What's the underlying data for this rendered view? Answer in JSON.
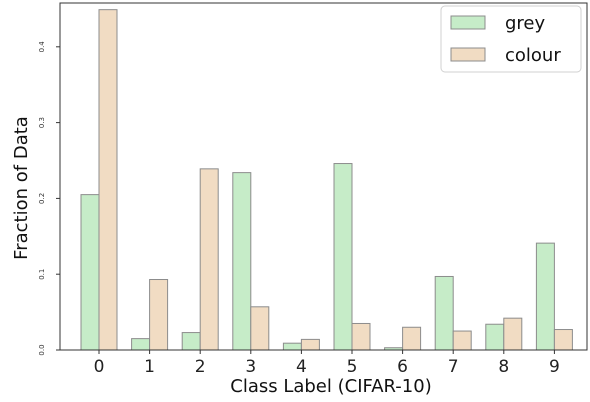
{
  "chart_data": {
    "type": "bar",
    "categories": [
      "0",
      "1",
      "2",
      "3",
      "4",
      "5",
      "6",
      "7",
      "8",
      "9"
    ],
    "series": [
      {
        "name": "grey",
        "color": "#c6ecc8",
        "values": [
          0.205,
          0.015,
          0.023,
          0.234,
          0.009,
          0.246,
          0.003,
          0.097,
          0.034,
          0.141
        ]
      },
      {
        "name": "colour",
        "color": "#f1dcc3",
        "values": [
          0.449,
          0.093,
          0.239,
          0.057,
          0.014,
          0.035,
          0.03,
          0.025,
          0.042,
          0.027
        ]
      }
    ],
    "xlabel": "Class Label (CIFAR-10)",
    "ylabel": "Fraction of Data",
    "ylim": [
      0,
      0.4578
    ],
    "yticks": [
      {
        "value": 0.0,
        "label": "0.0"
      },
      {
        "value": 0.1,
        "label": "0.1"
      },
      {
        "value": 0.2,
        "label": "0.2"
      },
      {
        "value": 0.3,
        "label": "0.3"
      },
      {
        "value": 0.4,
        "label": "0.4"
      }
    ],
    "legend_position": "top-right",
    "bar_edge_color": "#8c8c8c",
    "grid": false
  }
}
